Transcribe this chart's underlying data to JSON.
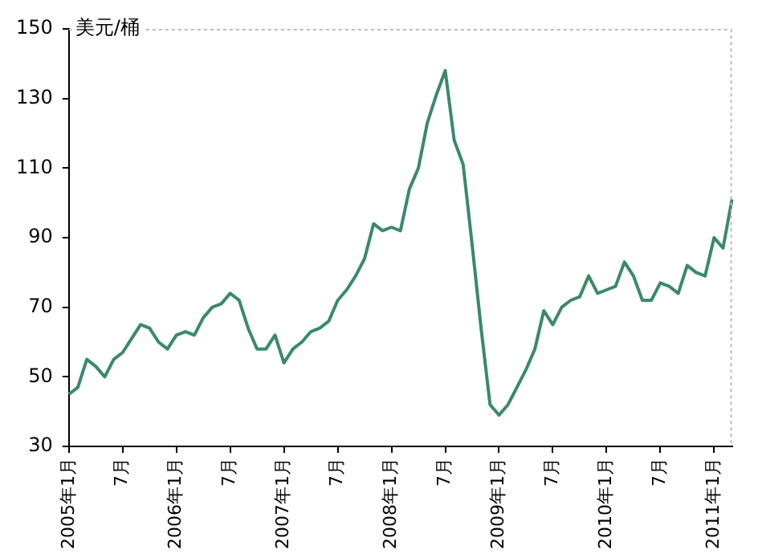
{
  "chart_data": {
    "type": "line",
    "ylabel": "美元/桶",
    "categories": [
      "2005年1月",
      null,
      null,
      null,
      null,
      null,
      "7月",
      null,
      null,
      null,
      null,
      null,
      "2006年1月",
      null,
      null,
      null,
      null,
      null,
      "7月",
      null,
      null,
      null,
      null,
      null,
      "2007年1月",
      null,
      null,
      null,
      null,
      null,
      "7月",
      null,
      null,
      null,
      null,
      null,
      "2008年1月",
      null,
      null,
      null,
      null,
      null,
      "7月",
      null,
      null,
      null,
      null,
      null,
      "2009年1月",
      null,
      null,
      null,
      null,
      null,
      "7月",
      null,
      null,
      null,
      null,
      null,
      "2010年1月",
      null,
      null,
      null,
      null,
      null,
      "7月",
      null,
      null,
      null,
      null,
      null,
      "2011年1月",
      null,
      null
    ],
    "series": [
      {
        "color": "#3a8a68",
        "values": [
          45,
          47,
          55,
          53,
          50,
          55,
          57,
          61,
          65,
          64,
          60,
          58,
          62,
          63,
          62,
          67,
          70,
          71,
          74,
          72,
          64,
          58,
          58,
          62,
          54,
          58,
          60,
          63,
          64,
          66,
          72,
          75,
          79,
          84,
          94,
          92,
          93,
          92,
          104,
          110,
          123,
          131,
          138,
          118,
          111,
          88,
          64,
          42,
          39,
          42,
          47,
          52,
          58,
          69,
          65,
          70,
          72,
          73,
          79,
          74,
          75,
          76,
          83,
          79,
          72,
          72,
          77,
          76,
          74,
          82,
          80,
          79,
          90,
          87,
          101
        ]
      }
    ],
    "ylim": [
      30,
      150
    ],
    "yticks": [
      30,
      50,
      70,
      90,
      110,
      130,
      150
    ],
    "grid": false,
    "legend": false,
    "marker": "none",
    "line_style": "solid"
  }
}
